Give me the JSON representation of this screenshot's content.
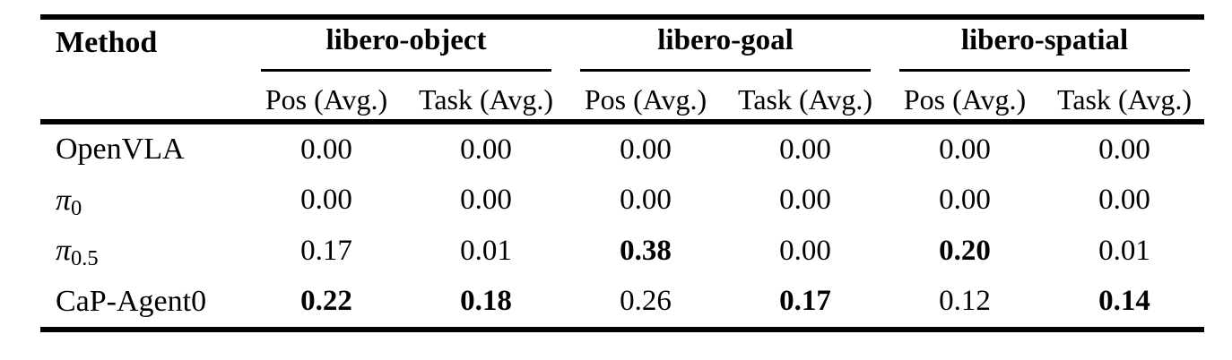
{
  "colors": {
    "text": "#000000",
    "background": "#ffffff",
    "rule": "#000000"
  },
  "table": {
    "method_header": "Method",
    "groups": [
      {
        "label": "libero-object",
        "sub": [
          "Pos (Avg.)",
          "Task (Avg.)"
        ]
      },
      {
        "label": "libero-goal",
        "sub": [
          "Pos (Avg.)",
          "Task (Avg.)"
        ]
      },
      {
        "label": "libero-spatial",
        "sub": [
          "Pos (Avg.)",
          "Task (Avg.)"
        ]
      }
    ],
    "rows": [
      {
        "method": {
          "base": "OpenVLA",
          "sub": "",
          "italic": false
        },
        "cells": [
          {
            "v": "0.00",
            "bold": false
          },
          {
            "v": "0.00",
            "bold": false
          },
          {
            "v": "0.00",
            "bold": false
          },
          {
            "v": "0.00",
            "bold": false
          },
          {
            "v": "0.00",
            "bold": false
          },
          {
            "v": "0.00",
            "bold": false
          }
        ]
      },
      {
        "method": {
          "base": "π",
          "sub": "0",
          "italic": true
        },
        "cells": [
          {
            "v": "0.00",
            "bold": false
          },
          {
            "v": "0.00",
            "bold": false
          },
          {
            "v": "0.00",
            "bold": false
          },
          {
            "v": "0.00",
            "bold": false
          },
          {
            "v": "0.00",
            "bold": false
          },
          {
            "v": "0.00",
            "bold": false
          }
        ]
      },
      {
        "method": {
          "base": "π",
          "sub": "0.5",
          "italic": true
        },
        "cells": [
          {
            "v": "0.17",
            "bold": false
          },
          {
            "v": "0.01",
            "bold": false
          },
          {
            "v": "0.38",
            "bold": true
          },
          {
            "v": "0.00",
            "bold": false
          },
          {
            "v": "0.20",
            "bold": true
          },
          {
            "v": "0.01",
            "bold": false
          }
        ]
      },
      {
        "method": {
          "base": "CaP-Agent0",
          "sub": "",
          "italic": false
        },
        "cells": [
          {
            "v": "0.22",
            "bold": true
          },
          {
            "v": "0.18",
            "bold": true
          },
          {
            "v": "0.26",
            "bold": false
          },
          {
            "v": "0.17",
            "bold": true
          },
          {
            "v": "0.12",
            "bold": false
          },
          {
            "v": "0.14",
            "bold": true
          }
        ]
      }
    ]
  }
}
